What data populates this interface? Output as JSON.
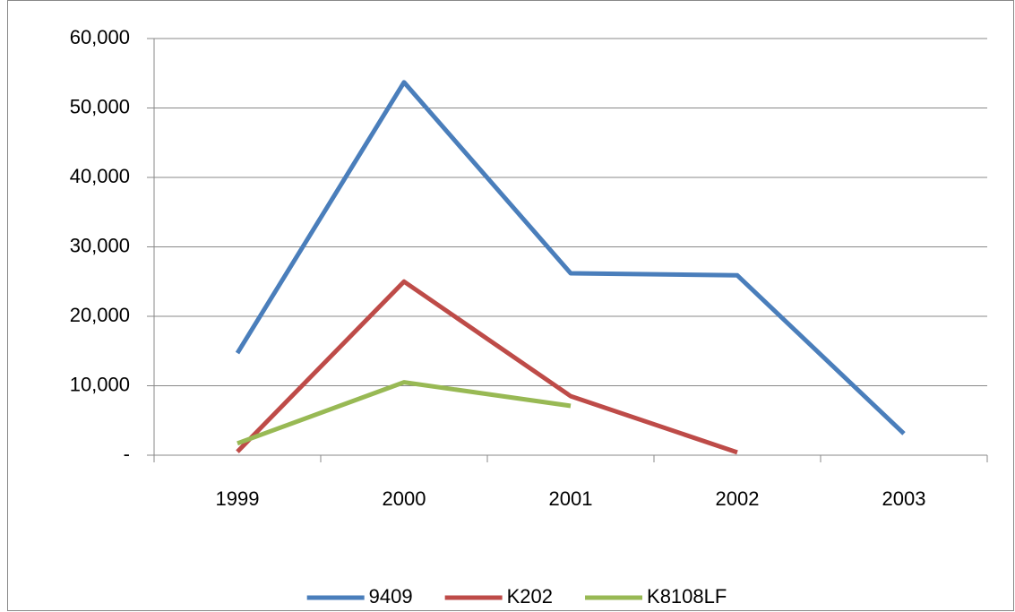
{
  "chart_data": {
    "type": "line",
    "categories": [
      "1999",
      "2000",
      "2001",
      "2002",
      "2003"
    ],
    "series": [
      {
        "name": "9409",
        "color": "#4a7ebb",
        "values": [
          14700,
          53700,
          26200,
          25900,
          3100
        ]
      },
      {
        "name": "K202",
        "color": "#be4b48",
        "values": [
          500,
          25000,
          8500,
          400,
          null
        ]
      },
      {
        "name": "K8108LF",
        "color": "#98b954",
        "values": [
          1700,
          10500,
          7100,
          null,
          null
        ]
      }
    ],
    "ylim": [
      0,
      60000
    ],
    "yticks": [
      {
        "value": 0,
        "label": "-"
      },
      {
        "value": 10000,
        "label": "10,000"
      },
      {
        "value": 20000,
        "label": "20,000"
      },
      {
        "value": 30000,
        "label": "30,000"
      },
      {
        "value": 40000,
        "label": "40,000"
      },
      {
        "value": 50000,
        "label": "50,000"
      },
      {
        "value": 60000,
        "label": "60,000"
      }
    ],
    "grid": true,
    "legend": "bottom"
  }
}
